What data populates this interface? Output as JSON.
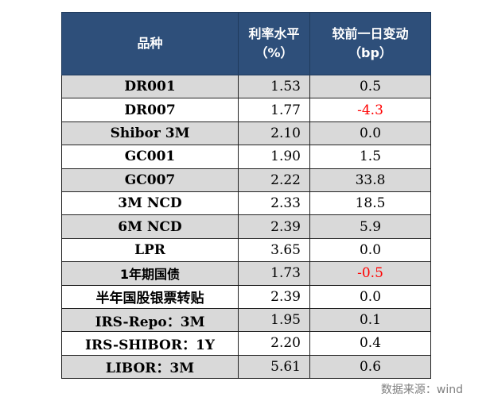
{
  "table": {
    "headers": {
      "name": "品种",
      "rate_line1": "利率水平",
      "rate_line2": "（%）",
      "change_line1": "较前一日变动",
      "change_line2": "（bp）"
    },
    "rows": [
      {
        "name": "DR001",
        "rate": "1.53",
        "change": "0.5",
        "change_color": "#000000",
        "shaded": true
      },
      {
        "name": "DR007",
        "rate": "1.77",
        "change": "-4.3",
        "change_color": "#ff0000",
        "shaded": false
      },
      {
        "name": "Shibor 3M",
        "rate": "2.10",
        "change": "0.0",
        "change_color": "#000000",
        "shaded": true
      },
      {
        "name": "GC001",
        "rate": "1.90",
        "change": "1.5",
        "change_color": "#000000",
        "shaded": false
      },
      {
        "name": "GC007",
        "rate": "2.22",
        "change": "33.8",
        "change_color": "#000000",
        "shaded": true
      },
      {
        "name": "3M NCD",
        "rate": "2.33",
        "change": "18.5",
        "change_color": "#000000",
        "shaded": false
      },
      {
        "name": "6M NCD",
        "rate": "2.39",
        "change": "5.9",
        "change_color": "#000000",
        "shaded": true
      },
      {
        "name": "LPR",
        "rate": "3.65",
        "change": "0.0",
        "change_color": "#000000",
        "shaded": false
      },
      {
        "name": "1年期国债",
        "rate": "1.73",
        "change": "-0.5",
        "change_color": "#ff0000",
        "shaded": true
      },
      {
        "name": "半年国股银票转贴",
        "rate": "2.39",
        "change": "0.0",
        "change_color": "#000000",
        "shaded": false
      },
      {
        "name": "IRS-Repo：3M",
        "rate": "1.95",
        "change": "0.1",
        "change_color": "#000000",
        "shaded": true
      },
      {
        "name": "IRS-SHIBOR：1Y",
        "rate": "2.20",
        "change": "0.4",
        "change_color": "#000000",
        "shaded": false
      },
      {
        "name": "LIBOR：3M",
        "rate": "5.61",
        "change": "0.6",
        "change_color": "#000000",
        "shaded": true
      }
    ]
  },
  "source": "数据来源：wind",
  "colors": {
    "header_bg": "#2e4f7a",
    "header_text": "#ffffff",
    "shaded_row": "#d9d9d9",
    "negative": "#ff0000",
    "source_text": "#7f7f7f"
  }
}
